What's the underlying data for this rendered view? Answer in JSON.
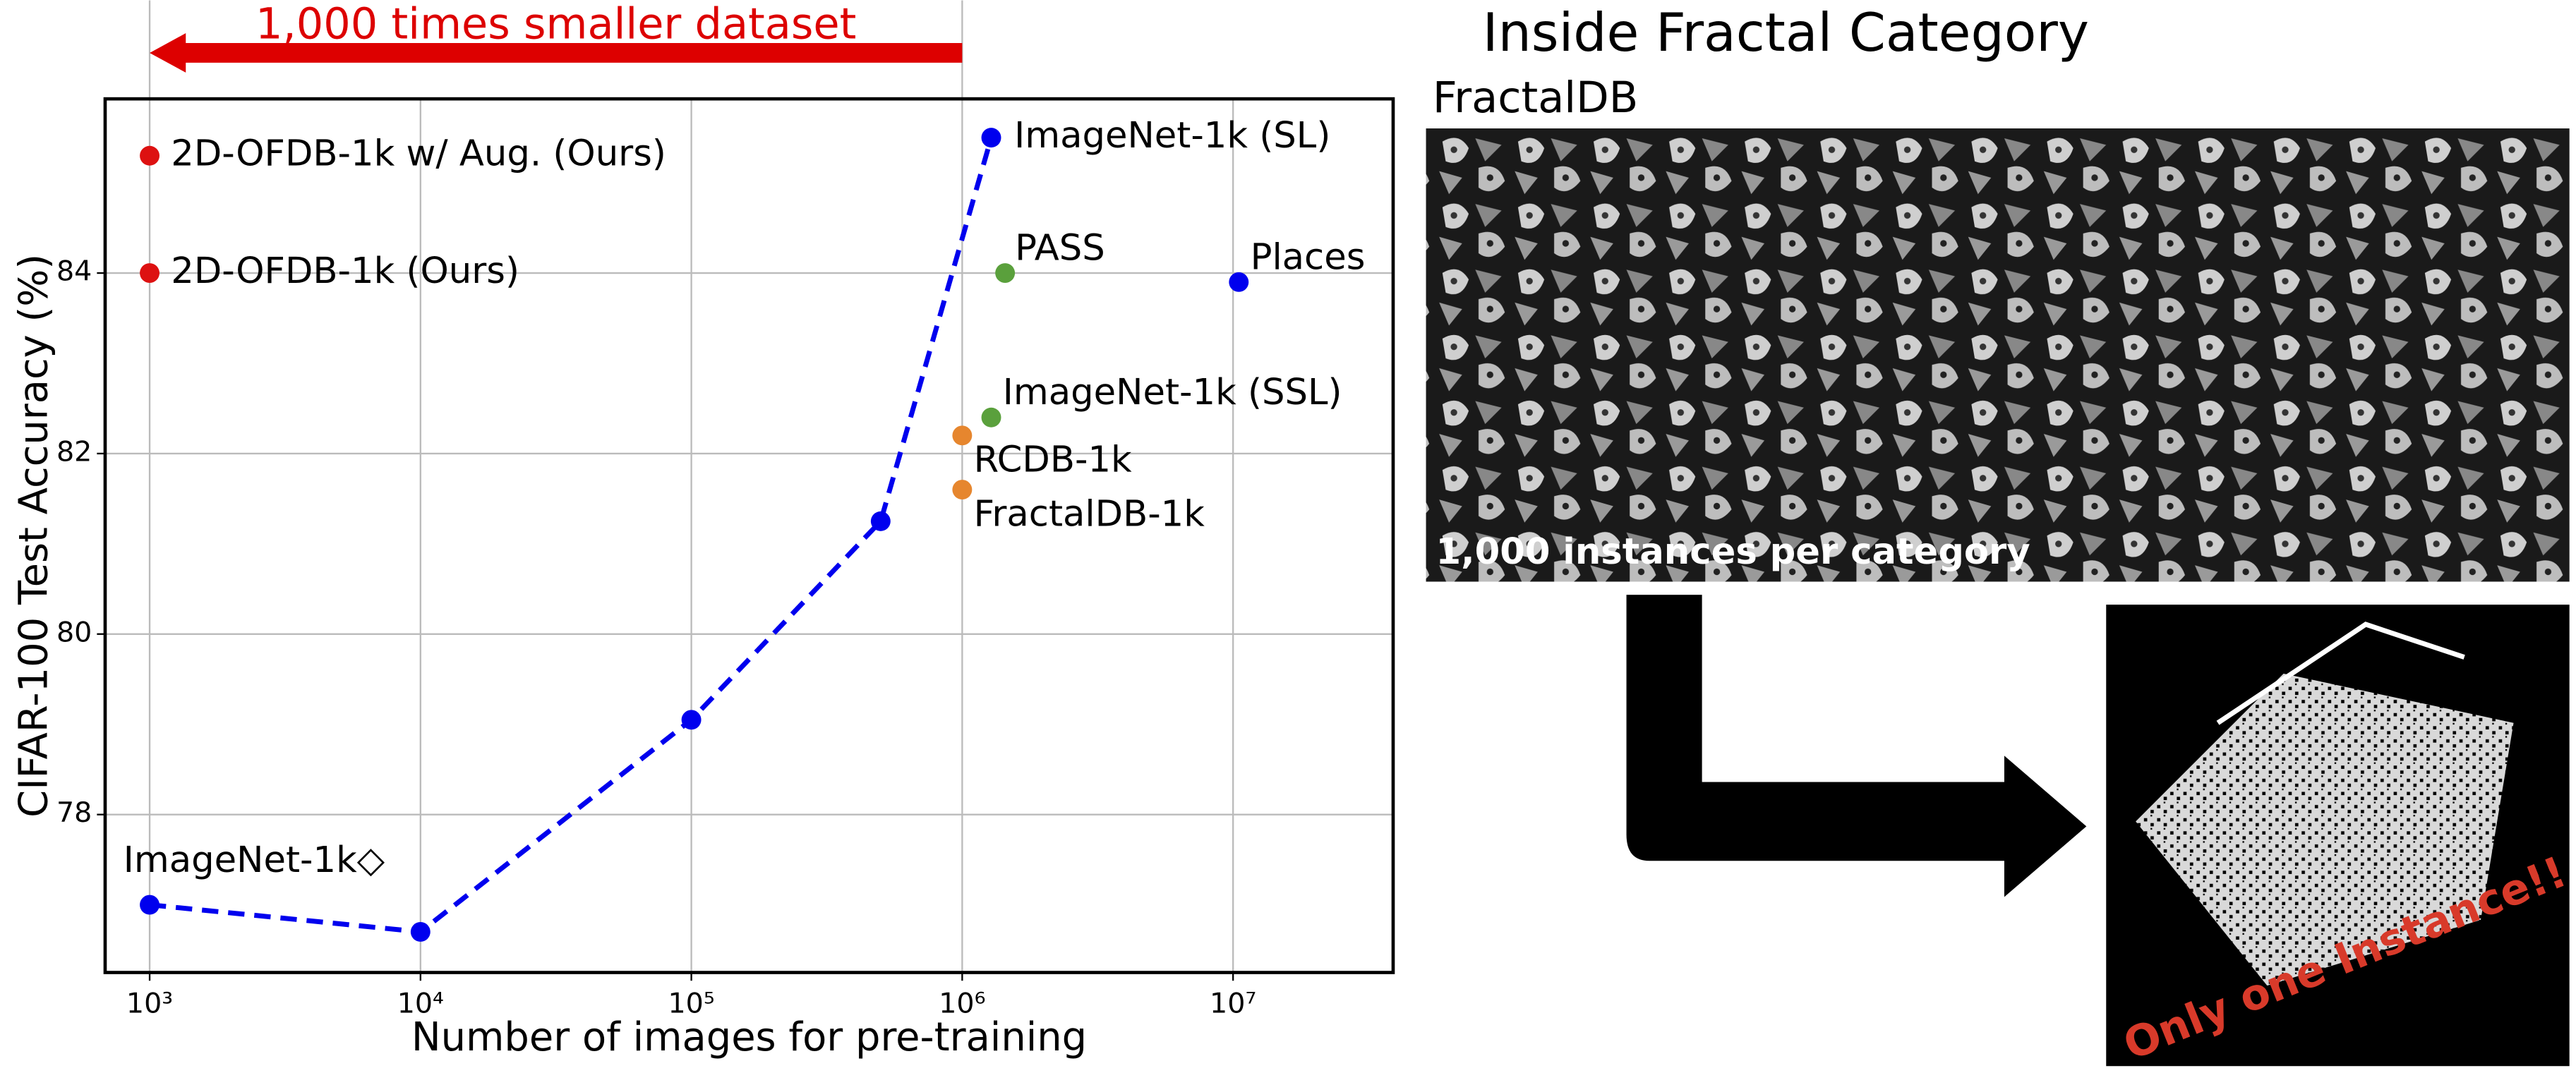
{
  "chart_data": {
    "type": "scatter",
    "xlabel": "Number of images for pre-training",
    "ylabel": "CIFAR-100 Test Accuracy (%)",
    "xscale": "log",
    "xlim": [
      685,
      39000000
    ],
    "ylim": [
      76.25,
      85.93
    ],
    "xticks": [
      {
        "value": 1000,
        "label": "10³"
      },
      {
        "value": 10000,
        "label": "10⁴"
      },
      {
        "value": 100000,
        "label": "10⁵"
      },
      {
        "value": 1000000,
        "label": "10⁶"
      },
      {
        "value": 10000000,
        "label": "10⁷"
      }
    ],
    "yticks": [
      78,
      80,
      82,
      84
    ],
    "grid": true,
    "annotation": "1,000 times smaller dataset",
    "annotation_color": "#dd0000",
    "line": {
      "color": "#0000ee",
      "x": [
        1000,
        10000,
        100000,
        500000,
        1280000
      ],
      "values": [
        77.0,
        76.7,
        79.05,
        81.25,
        85.5
      ],
      "labels": [
        "ImageNet-1k◇",
        null,
        null,
        null,
        "ImageNet-1k (SL)"
      ]
    },
    "points": [
      {
        "label": "2D-OFDB-1k w/ Aug. (Ours)",
        "x": 1000,
        "y": 85.3,
        "color": "#dd1111"
      },
      {
        "label": "2D-OFDB-1k (Ours)",
        "x": 1000,
        "y": 84.0,
        "color": "#dd1111"
      },
      {
        "label": "PASS",
        "x": 1440000,
        "y": 84.0,
        "color": "#5aa03c"
      },
      {
        "label": "Places",
        "x": 10500000,
        "y": 83.9,
        "color": "#0000ee"
      },
      {
        "label": "ImageNet-1k (SSL)",
        "x": 1280000,
        "y": 82.4,
        "color": "#5aa03c"
      },
      {
        "label": "RCDB-1k",
        "x": 1000000,
        "y": 82.2,
        "color": "#e6862e"
      },
      {
        "label": "FractalDB-1k",
        "x": 1000000,
        "y": 81.6,
        "color": "#e6862e"
      }
    ]
  },
  "diagram": {
    "title": "Inside Fractal Category",
    "panel_label": "FractalDB",
    "panel_caption": "1,000 instances per category",
    "instance_caption": "Only one Instance!!"
  }
}
